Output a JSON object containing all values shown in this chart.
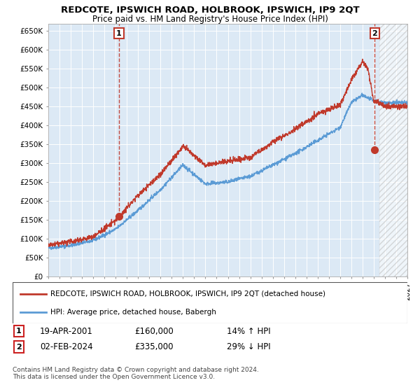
{
  "title": "REDCOTE, IPSWICH ROAD, HOLBROOK, IPSWICH, IP9 2QT",
  "subtitle": "Price paid vs. HM Land Registry's House Price Index (HPI)",
  "legend_line1": "REDCOTE, IPSWICH ROAD, HOLBROOK, IPSWICH, IP9 2QT (detached house)",
  "legend_line2": "HPI: Average price, detached house, Babergh",
  "annotation1_date": "19-APR-2001",
  "annotation1_price": "£160,000",
  "annotation1_hpi": "14% ↑ HPI",
  "annotation2_date": "02-FEB-2024",
  "annotation2_price": "£335,000",
  "annotation2_hpi": "29% ↓ HPI",
  "footer": "Contains HM Land Registry data © Crown copyright and database right 2024.\nThis data is licensed under the Open Government Licence v3.0.",
  "sale1_year": 2001.3,
  "sale1_price": 160000,
  "sale2_year": 2024.08,
  "sale2_price": 335000,
  "hpi_color": "#5b9bd5",
  "price_color": "#c0392b",
  "vline_color": "#c0392b",
  "ylim_min": 0,
  "ylim_max": 670000,
  "xlim_min": 1995,
  "xlim_max": 2027,
  "chart_bg_color": "#dce9f5",
  "background_color": "#ffffff",
  "grid_color": "#ffffff"
}
